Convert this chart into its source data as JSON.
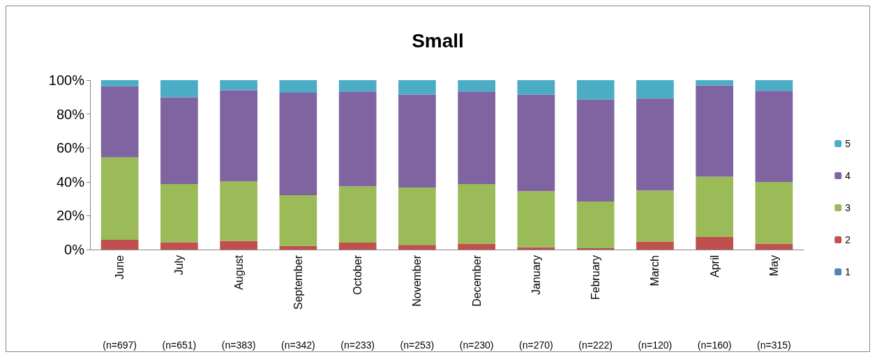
{
  "chart_data": {
    "type": "bar",
    "title": "Small",
    "stacked": true,
    "categories": [
      "June",
      "July",
      "August",
      "September",
      "October",
      "November",
      "December",
      "January",
      "February",
      "March",
      "April",
      "May"
    ],
    "annotations": [
      "(n=697)",
      "(n=651)",
      "(n=383)",
      "(n=342)",
      "(n=233)",
      "(n=253)",
      "(n=230)",
      "(n=270)",
      "(n=222)",
      "(n=120)",
      "(n=160)",
      "(n=315)"
    ],
    "series": [
      {
        "name": "1",
        "color": "#4f81bd",
        "values": [
          0,
          0,
          0,
          0,
          0,
          0,
          0,
          0,
          0,
          0,
          0,
          0
        ]
      },
      {
        "name": "2",
        "color": "#c0504d",
        "values": [
          5.8,
          4.3,
          5.1,
          2.2,
          4.1,
          2.8,
          3.5,
          1.3,
          0.8,
          4.7,
          7.4,
          3.5
        ]
      },
      {
        "name": "3",
        "color": "#9bbb59",
        "values": [
          48.6,
          34.4,
          35.2,
          29.9,
          33.2,
          33.8,
          35.2,
          33.2,
          27.6,
          30.2,
          35.6,
          36.4
        ]
      },
      {
        "name": "4",
        "color": "#8064a2",
        "values": [
          42.0,
          51.2,
          53.7,
          60.5,
          56.0,
          55.0,
          54.6,
          57.0,
          60.2,
          54.3,
          53.8,
          53.8
        ]
      },
      {
        "name": "5",
        "color": "#4bacc6",
        "values": [
          3.6,
          10.1,
          6.0,
          7.4,
          6.7,
          8.4,
          6.7,
          8.5,
          11.4,
          10.8,
          3.2,
          6.3
        ]
      }
    ],
    "ylim": [
      0,
      100
    ],
    "yticks": [
      {
        "value": 0,
        "label": "0%"
      },
      {
        "value": 20,
        "label": "20%"
      },
      {
        "value": 40,
        "label": "40%"
      },
      {
        "value": 60,
        "label": "60%"
      },
      {
        "value": 80,
        "label": "80%"
      },
      {
        "value": 100,
        "label": "100%"
      }
    ],
    "grid": false,
    "legend": "right"
  }
}
